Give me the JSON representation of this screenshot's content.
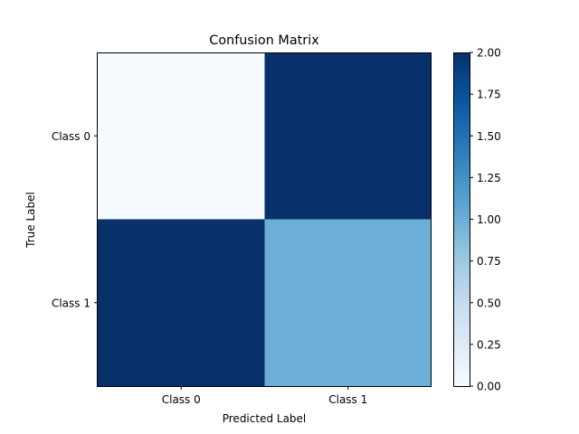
{
  "chart_data": {
    "type": "heatmap",
    "title": "Confusion Matrix",
    "xlabel": "Predicted Label",
    "ylabel": "True Label",
    "x_categories": [
      "Class 0",
      "Class 1"
    ],
    "y_categories": [
      "Class 0",
      "Class 1"
    ],
    "values": [
      [
        0,
        2
      ],
      [
        2,
        1
      ]
    ],
    "colorbar": {
      "range": [
        0,
        2
      ],
      "ticks": [
        "0.00",
        "0.25",
        "0.50",
        "0.75",
        "1.00",
        "1.25",
        "1.50",
        "1.75",
        "2.00"
      ],
      "colormap": "Blues",
      "colors": [
        "#f7fbff",
        "#deebf7",
        "#c6dbef",
        "#9ecae1",
        "#6baed6",
        "#4292c6",
        "#2171b5",
        "#08519c",
        "#08306b"
      ]
    }
  }
}
